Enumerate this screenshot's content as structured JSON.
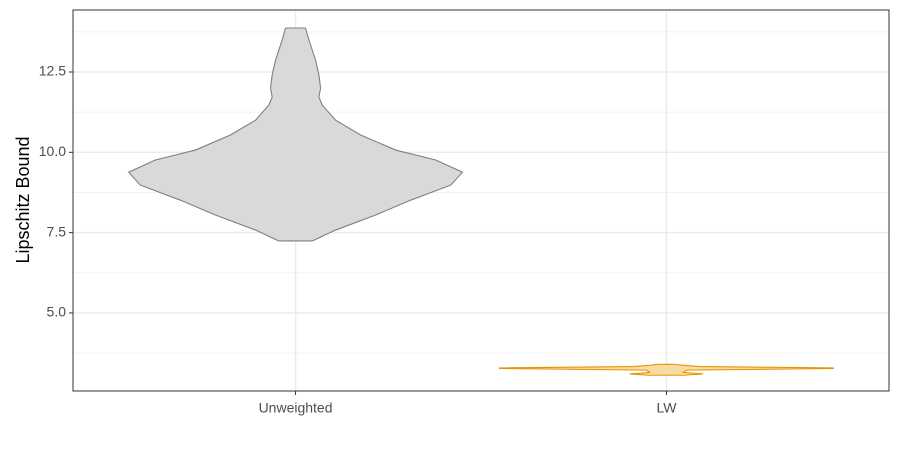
{
  "chart_data": {
    "type": "violin",
    "y_label": "Lipschitz Bound",
    "categories": [
      "Unweighted",
      "LW"
    ],
    "series": [
      {
        "name": "Unweighted",
        "color": "#d9d9d9",
        "stroke": "#7f7f7f",
        "y": [
          7.24,
          7.58,
          8.05,
          8.51,
          8.98,
          9.38,
          9.76,
          10.07,
          10.54,
          11.0,
          11.47,
          11.72,
          12.0,
          12.41,
          12.87,
          13.5,
          13.87
        ],
        "density": [
          0.1,
          0.24,
          0.48,
          0.69,
          0.93,
          1,
          0.84,
          0.6,
          0.39,
          0.24,
          0.16,
          0.14,
          0.15,
          0.14,
          0.12,
          0.08,
          0.06
        ]
      },
      {
        "name": "LW",
        "color": "#f8dca6",
        "stroke": "#e69500",
        "y": [
          3.06,
          3.1,
          3.15,
          3.22,
          3.27,
          3.29,
          3.33,
          3.38,
          3.4
        ],
        "density": [
          0.1,
          0.22,
          0.1,
          0.12,
          1,
          1,
          0.2,
          0.08,
          0.05
        ]
      }
    ],
    "ylim": [
      2.57,
      14.43
    ],
    "yticks": [
      {
        "value": 5,
        "label": "5.0"
      },
      7.5,
      {
        "value": 10,
        "label": "10.0"
      },
      12.5
    ],
    "y_minor_ticks": [
      3.75,
      6.25,
      8.75,
      11.25,
      13.75
    ],
    "grid": true
  }
}
